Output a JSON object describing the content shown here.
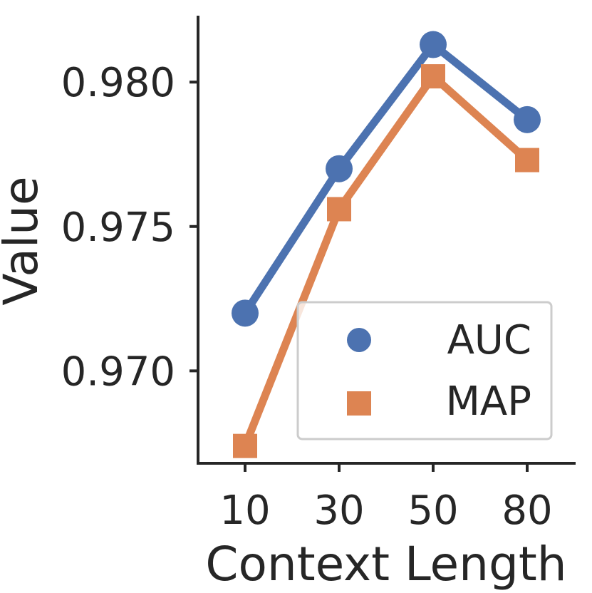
{
  "chart_data": {
    "type": "line",
    "categories": [
      "10",
      "30",
      "50",
      "80"
    ],
    "series": [
      {
        "name": "AUC",
        "values": [
          0.972,
          0.977,
          0.9813,
          0.9787
        ],
        "color": "#4c72b0",
        "marker": "circle"
      },
      {
        "name": "MAP",
        "values": [
          0.9674,
          0.9756,
          0.9802,
          0.9773
        ],
        "color": "#dd8452",
        "marker": "square"
      }
    ],
    "xlabel": "Context Length",
    "ylabel": "Value",
    "yticks": [
      "0.970",
      "0.975",
      "0.980"
    ],
    "ytick_values": [
      0.97,
      0.975,
      0.98
    ],
    "ylim": [
      0.9668,
      0.9823
    ],
    "grid": false,
    "legend_position": "lower-right"
  }
}
